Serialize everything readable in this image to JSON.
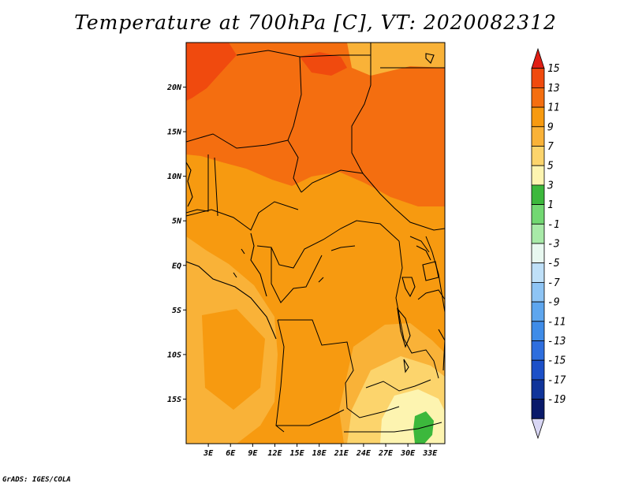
{
  "title": "Temperature at 700hPa [C], VT: 2020082312",
  "credit": "GrADS: IGES/COLA",
  "map": {
    "lon_range": [
      0,
      35
    ],
    "lat_range": [
      -20,
      25
    ],
    "lat_ticks": [
      {
        "value": 20,
        "label": "20N"
      },
      {
        "value": 15,
        "label": "15N"
      },
      {
        "value": 10,
        "label": "10N"
      },
      {
        "value": 5,
        "label": "5N"
      },
      {
        "value": 0,
        "label": "EQ"
      },
      {
        "value": -5,
        "label": "5S"
      },
      {
        "value": -10,
        "label": "10S"
      },
      {
        "value": -15,
        "label": "15S"
      }
    ],
    "lon_ticks": [
      {
        "value": 3,
        "label": "3E"
      },
      {
        "value": 6,
        "label": "6E"
      },
      {
        "value": 9,
        "label": "9E"
      },
      {
        "value": 12,
        "label": "12E"
      },
      {
        "value": 15,
        "label": "15E"
      },
      {
        "value": 18,
        "label": "18E"
      },
      {
        "value": 21,
        "label": "21E"
      },
      {
        "value": 24,
        "label": "24E"
      },
      {
        "value": 27,
        "label": "27E"
      },
      {
        "value": 30,
        "label": "30E"
      },
      {
        "value": 33,
        "label": "33E"
      }
    ]
  },
  "colorbar": {
    "labels": [
      "15",
      "13",
      "11",
      "9",
      "7",
      "5",
      "3",
      "1",
      "-1",
      "-3",
      "-5",
      "-7",
      "-9",
      "-11",
      "-13",
      "-15",
      "-17",
      "-19"
    ],
    "colors": [
      "#e01e14",
      "#f04a0e",
      "#f46e10",
      "#f79a10",
      "#f9b238",
      "#fcd46c",
      "#fdf4b0",
      "#3cb83c",
      "#72d872",
      "#a8eaa8",
      "#e8f8f0",
      "#bfe0f8",
      "#8ec4f4",
      "#5ea6ee",
      "#3f8ce8",
      "#2e6ede",
      "#1c50c8",
      "#10349a",
      "#0a1a6a",
      "#d8d6f4"
    ]
  }
}
